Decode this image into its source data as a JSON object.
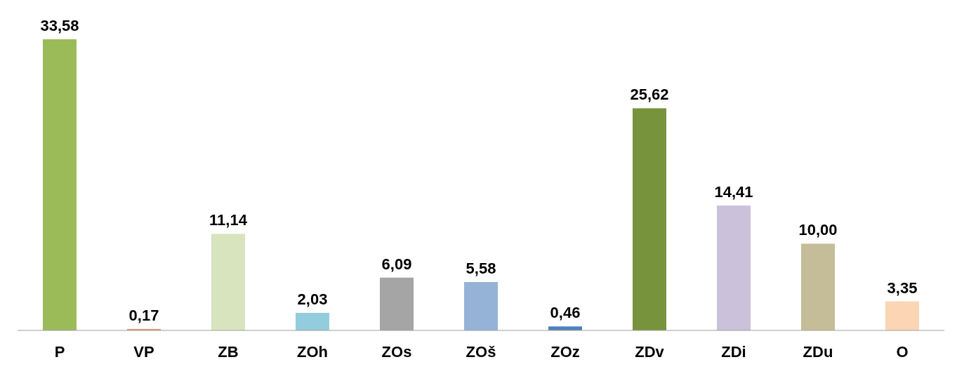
{
  "chart_data": {
    "type": "bar",
    "categories": [
      "P",
      "VP",
      "ZB",
      "ZOh",
      "ZOs",
      "ZOš",
      "ZOz",
      "ZDv",
      "ZDi",
      "ZDu",
      "O"
    ],
    "values": [
      33.58,
      0.17,
      11.14,
      2.03,
      6.09,
      5.58,
      0.46,
      25.62,
      14.41,
      10.0,
      3.35
    ],
    "value_labels": [
      "33,58",
      "0,17",
      "11,14",
      "2,03",
      "6,09",
      "5,58",
      "0,46",
      "25,62",
      "14,41",
      "10,00",
      "3,35"
    ],
    "colors": [
      "#9bbb59",
      "#d99a6c",
      "#d7e4bd",
      "#93cddd",
      "#a5a5a5",
      "#95b3d7",
      "#4f81bd",
      "#77933c",
      "#ccc1da",
      "#c4bd97",
      "#fcd5b5"
    ]
  }
}
